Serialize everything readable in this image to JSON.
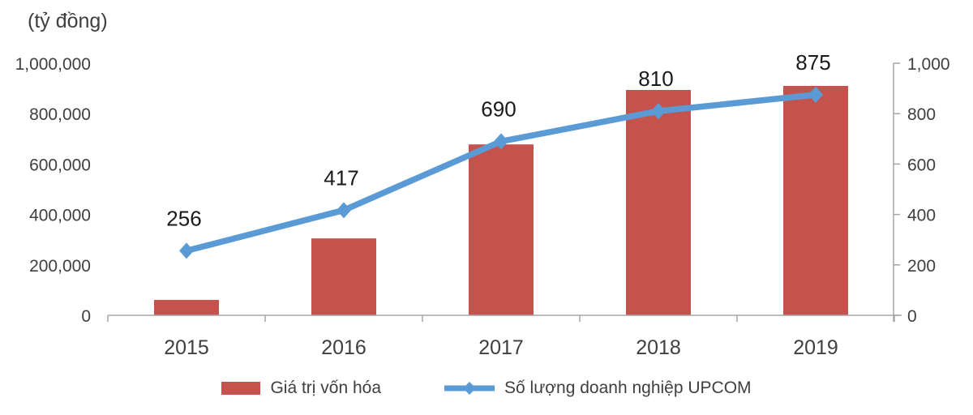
{
  "chart": {
    "unit_label": "(tỷ đồng)"
  },
  "chart_data": {
    "type": "bar+line combo",
    "categories": [
      "2015",
      "2016",
      "2017",
      "2018",
      "2019"
    ],
    "series": [
      {
        "name": "Giá trị vốn hóa",
        "type": "bar",
        "axis": "left",
        "color": "#C4534E",
        "values": [
          61000,
          305000,
          678000,
          894000,
          910000
        ]
      },
      {
        "name": "Số lượng doanh nghiệp UPCOM",
        "type": "line",
        "axis": "right",
        "color": "#5B9BD5",
        "values": [
          256,
          417,
          690,
          810,
          875
        ],
        "data_labels": [
          "256",
          "417",
          "690",
          "810",
          "875"
        ]
      }
    ],
    "left_axis": {
      "label": "(tỷ đồng)",
      "min": 0,
      "max": 1000000,
      "tick_step": 200000,
      "tick_labels": [
        "0",
        "200,000",
        "400,000",
        "600,000",
        "800,000",
        "1,000,000"
      ]
    },
    "right_axis": {
      "min": 0,
      "max": 1000,
      "tick_step": 200,
      "tick_labels": [
        "0",
        "200",
        "400",
        "600",
        "800",
        "1,000"
      ]
    },
    "legend_position": "bottom",
    "grid": false
  },
  "colors": {
    "background": "#FFFFFF",
    "bar_fill": "#C4534E",
    "line_stroke": "#5B9BD5",
    "axis_line": "#A6A6A6",
    "tick_text": "#3F3F3F",
    "data_label_text": "#1A1A1A"
  }
}
